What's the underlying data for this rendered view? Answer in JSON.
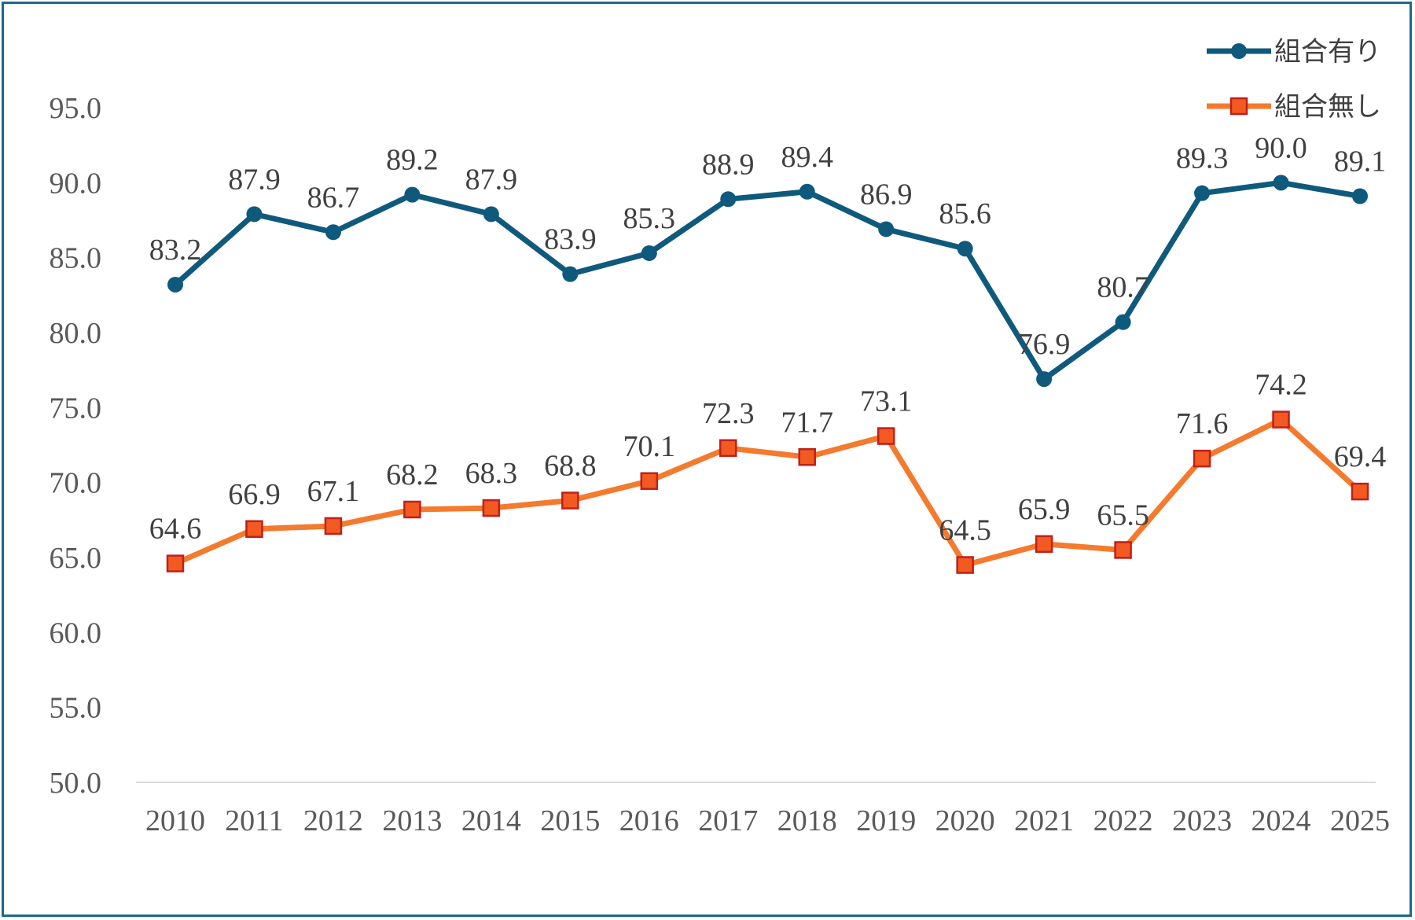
{
  "chart_data": {
    "type": "line",
    "title": "",
    "xlabel": "",
    "ylabel": "",
    "categories": [
      "2010",
      "2011",
      "2012",
      "2013",
      "2014",
      "2015",
      "2016",
      "2017",
      "2018",
      "2019",
      "2020",
      "2021",
      "2022",
      "2023",
      "2024",
      "2025"
    ],
    "ylim": [
      50,
      95
    ],
    "yticks": [
      "50.0",
      "55.0",
      "60.0",
      "65.0",
      "70.0",
      "75.0",
      "80.0",
      "85.0",
      "90.0",
      "95.0"
    ],
    "grid": false,
    "legend_position": "top-right",
    "series": [
      {
        "name": "組合有り",
        "color": "#0f5a7c",
        "marker": "circle",
        "values": [
          83.2,
          87.9,
          86.7,
          89.2,
          87.9,
          83.9,
          85.3,
          88.9,
          89.4,
          86.9,
          85.6,
          76.9,
          80.7,
          89.3,
          90.0,
          89.1
        ],
        "labels": [
          "83.2",
          "87.9",
          "86.7",
          "89.2",
          "87.9",
          "83.9",
          "85.3",
          "88.9",
          "89.4",
          "86.9",
          "85.6",
          "76.9",
          "80.7",
          "89.3",
          "90.0",
          "89.1"
        ]
      },
      {
        "name": "組合無し",
        "color": "#f47a2e",
        "marker": "square",
        "marker_fill": "#f25a22",
        "marker_edge": "#c0201a",
        "values": [
          64.6,
          66.9,
          67.1,
          68.2,
          68.3,
          68.8,
          70.1,
          72.3,
          71.7,
          73.1,
          64.5,
          65.9,
          65.5,
          71.6,
          74.2,
          69.4
        ],
        "labels": [
          "64.6",
          "66.9",
          "67.1",
          "68.2",
          "68.3",
          "68.8",
          "70.1",
          "72.3",
          "71.7",
          "73.1",
          "64.5",
          "65.9",
          "65.5",
          "71.6",
          "74.2",
          "69.4"
        ]
      }
    ]
  }
}
